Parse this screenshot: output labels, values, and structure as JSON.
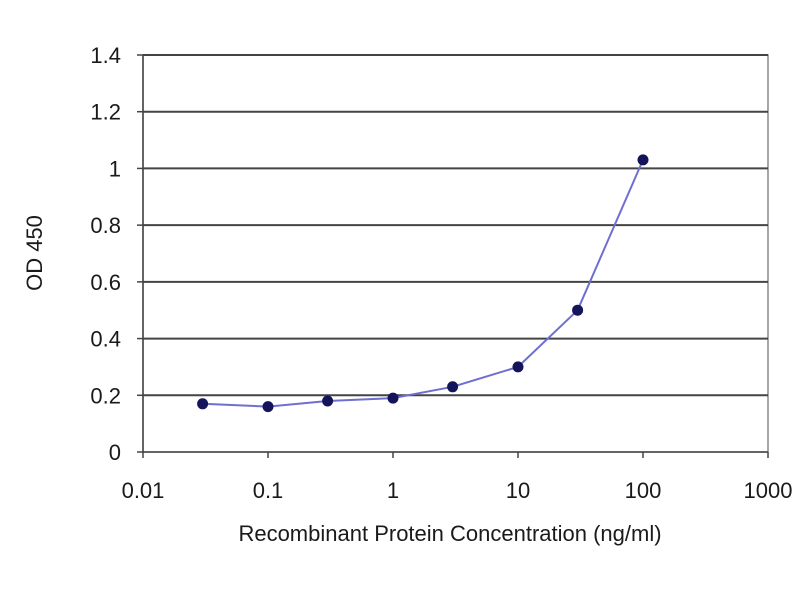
{
  "chart_data": {
    "type": "line",
    "title": "",
    "xlabel": "Recombinant Protein Concentration (ng/ml)",
    "ylabel": "OD 450",
    "xscale": "log",
    "xlim": [
      0.01,
      1000
    ],
    "ylim": [
      0,
      1.4
    ],
    "xticks": [
      0.01,
      0.1,
      1,
      10,
      100,
      1000
    ],
    "xtick_labels": [
      "0.01",
      "0.1",
      "1",
      "10",
      "100",
      "1000"
    ],
    "yticks": [
      0,
      0.2,
      0.4,
      0.6,
      0.8,
      1,
      1.2,
      1.4
    ],
    "ytick_labels": [
      "0",
      "0.2",
      "0.4",
      "0.6",
      "0.8",
      "1",
      "1.2",
      "1.4"
    ],
    "grid": "horizontal",
    "legend": "none",
    "series": [
      {
        "x": [
          0.03,
          0.1,
          0.3,
          1,
          3,
          10,
          30,
          100
        ],
        "y": [
          0.17,
          0.16,
          0.18,
          0.19,
          0.23,
          0.3,
          0.5,
          1.03
        ]
      }
    ],
    "colors": {
      "line": "#6f6fd0",
      "marker": "#14145a",
      "grid": "#444444",
      "frame": "#888888"
    }
  }
}
